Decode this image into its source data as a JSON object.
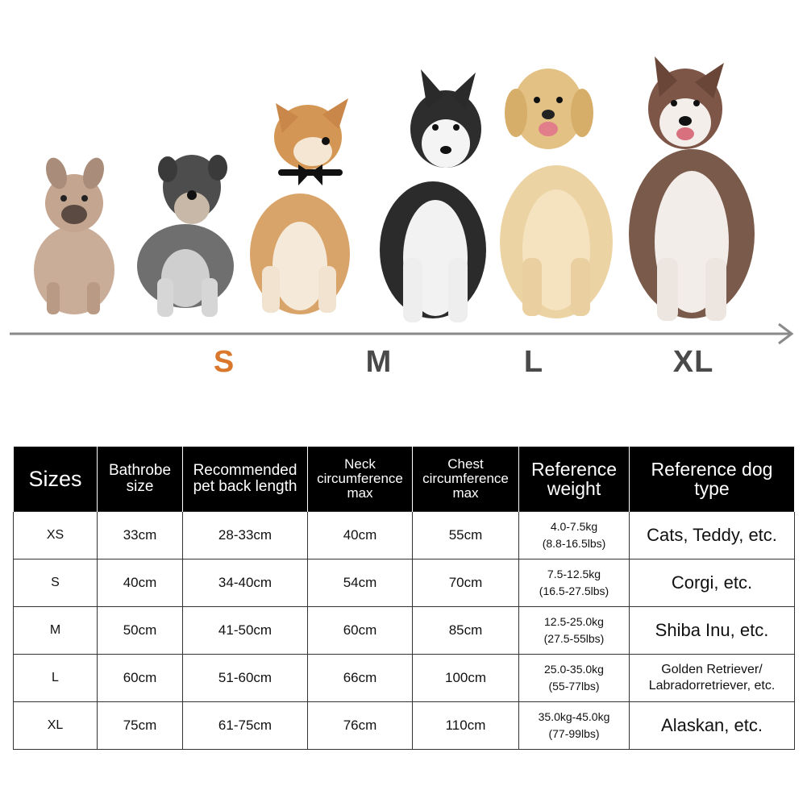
{
  "size_scale": {
    "labels": [
      {
        "text": "S",
        "color": "#d9772d"
      },
      {
        "text": "M",
        "color": "#4a4a4a"
      },
      {
        "text": "L",
        "color": "#4a4a4a"
      },
      {
        "text": "XL",
        "color": "#4a4a4a"
      }
    ]
  },
  "dogs": [
    "french-bulldog",
    "schnauzer",
    "shiba-inu",
    "husky",
    "golden-retriever",
    "alaskan-malamute"
  ],
  "table": {
    "headers": [
      "Sizes",
      "Bathrobe size",
      "Recommended pet back length",
      "Neck circumference max",
      "Chest circumference max",
      "Reference weight",
      "Reference dog type"
    ],
    "rows": [
      {
        "size": "XS",
        "bathrobe": "33cm",
        "back": "28-33cm",
        "neck": "40cm",
        "chest": "55cm",
        "weight_kg": "4.0-7.5kg",
        "weight_lbs": "(8.8-16.5lbs)",
        "dog_type": "Cats, Teddy, etc."
      },
      {
        "size": "S",
        "bathrobe": "40cm",
        "back": "34-40cm",
        "neck": "54cm",
        "chest": "70cm",
        "weight_kg": "7.5-12.5kg",
        "weight_lbs": "(16.5-27.5lbs)",
        "dog_type": "Corgi, etc."
      },
      {
        "size": "M",
        "bathrobe": "50cm",
        "back": "41-50cm",
        "neck": "60cm",
        "chest": "85cm",
        "weight_kg": "12.5-25.0kg",
        "weight_lbs": "(27.5-55lbs)",
        "dog_type": "Shiba Inu, etc."
      },
      {
        "size": "L",
        "bathrobe": "60cm",
        "back": "51-60cm",
        "neck": "66cm",
        "chest": "100cm",
        "weight_kg": "25.0-35.0kg",
        "weight_lbs": "(55-77lbs)",
        "dog_type": "Golden Retriever/ Labradorretriever, etc."
      },
      {
        "size": "XL",
        "bathrobe": "75cm",
        "back": "61-75cm",
        "neck": "76cm",
        "chest": "110cm",
        "weight_kg": "35.0kg-45.0kg",
        "weight_lbs": "(77-99lbs)",
        "dog_type": "Alaskan, etc."
      }
    ]
  }
}
